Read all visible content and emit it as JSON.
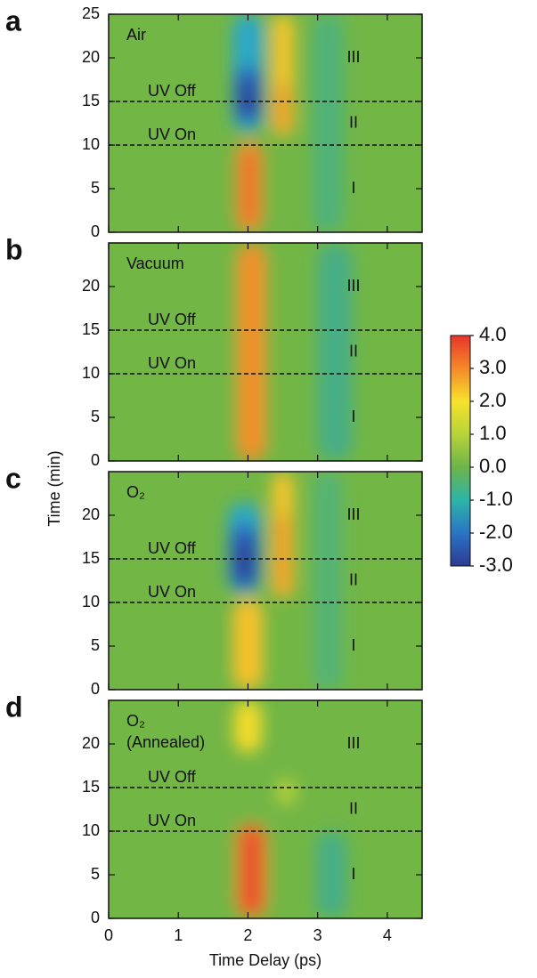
{
  "chart_data": [
    {
      "type": "heatmap",
      "panel_label": "a",
      "title": "Air",
      "xlim": [
        0,
        4.5
      ],
      "xticks": [
        0,
        1,
        2,
        3,
        4
      ],
      "ylim": [
        0,
        25
      ],
      "yticks": [
        0,
        5,
        10,
        15,
        20,
        25
      ],
      "lines": [
        {
          "label": "UV Off",
          "y": 15
        },
        {
          "label": "UV On",
          "y": 10
        }
      ],
      "regions": [
        {
          "label": "I",
          "y": 5
        },
        {
          "label": "II",
          "y": 12.5
        },
        {
          "label": "III",
          "y": 20
        }
      ]
    },
    {
      "type": "heatmap",
      "panel_label": "b",
      "title": "Vacuum",
      "xlim": [
        0,
        4.5
      ],
      "xticks": [
        0,
        1,
        2,
        3,
        4
      ],
      "ylim": [
        0,
        25
      ],
      "yticks": [
        0,
        5,
        10,
        15,
        20
      ],
      "lines": [
        {
          "label": "UV Off",
          "y": 15
        },
        {
          "label": "UV On",
          "y": 10
        }
      ],
      "regions": [
        {
          "label": "I",
          "y": 5
        },
        {
          "label": "II",
          "y": 12.5
        },
        {
          "label": "III",
          "y": 20
        }
      ]
    },
    {
      "type": "heatmap",
      "panel_label": "c",
      "title": "O₂",
      "xlim": [
        0,
        4.5
      ],
      "xticks": [
        0,
        1,
        2,
        3,
        4
      ],
      "ylim": [
        0,
        25
      ],
      "yticks": [
        0,
        5,
        10,
        15,
        20
      ],
      "lines": [
        {
          "label": "UV Off",
          "y": 15
        },
        {
          "label": "UV On",
          "y": 10
        }
      ],
      "regions": [
        {
          "label": "I",
          "y": 5
        },
        {
          "label": "II",
          "y": 12.5
        },
        {
          "label": "III",
          "y": 20
        }
      ]
    },
    {
      "type": "heatmap",
      "panel_label": "d",
      "title": "O₂",
      "subtitle": "(Annealed)",
      "xlim": [
        0,
        4.5
      ],
      "xticks": [
        0,
        1,
        2,
        3,
        4
      ],
      "ylim": [
        0,
        25
      ],
      "yticks": [
        0,
        5,
        10,
        15,
        20
      ],
      "xlabel": "Time Delay (ps)",
      "lines": [
        {
          "label": "UV Off",
          "y": 15
        },
        {
          "label": "UV On",
          "y": 10
        }
      ],
      "regions": [
        {
          "label": "I",
          "y": 5
        },
        {
          "label": "II",
          "y": 12.5
        },
        {
          "label": "III",
          "y": 20
        }
      ]
    }
  ],
  "ylabel": "Time (min)",
  "colorbar": {
    "lim": [
      -3,
      4
    ],
    "ticks": [
      {
        "value": 4,
        "label": "4.0"
      },
      {
        "value": 3,
        "label": "3.0"
      },
      {
        "value": 2,
        "label": "2.0"
      },
      {
        "value": 1,
        "label": "1.0"
      },
      {
        "value": 0,
        "label": "0.0"
      },
      {
        "value": -1,
        "label": "-1.0"
      },
      {
        "value": -2,
        "label": "-2.0"
      },
      {
        "value": -3,
        "label": "-3.0"
      }
    ]
  }
}
